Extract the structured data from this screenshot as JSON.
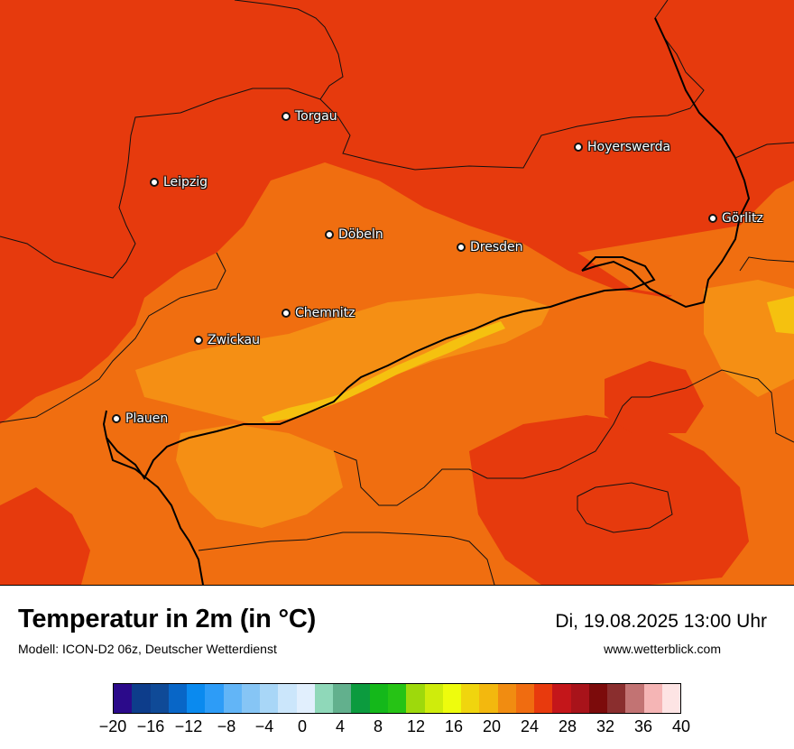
{
  "title": "Temperatur in 2m (in °C)",
  "subtitle": "Modell: ICON-D2 06z, Deutscher Wetterdienst",
  "datetime": "Di, 19.08.2025 13:00 Uhr",
  "website": "www.wetterblick.com",
  "colors": {
    "red": "#e63a0d",
    "orange": "#f06e10",
    "light_orange": "#f58f14",
    "yellow": "#f5c10f"
  },
  "cities": [
    {
      "name": "Torgau"
    },
    {
      "name": "Hoyerswerda"
    },
    {
      "name": "Leipzig"
    },
    {
      "name": "Görlitz"
    },
    {
      "name": "Döbeln"
    },
    {
      "name": "Dresden"
    },
    {
      "name": "Chemnitz"
    },
    {
      "name": "Zwickau"
    },
    {
      "name": "Plauen"
    }
  ],
  "legend": {
    "colors": [
      "#2b0a8a",
      "#0d3d8b",
      "#0f4a97",
      "#0866c7",
      "#0a8aef",
      "#2d9cf7",
      "#62b5f7",
      "#86c5f5",
      "#a8d6f7",
      "#cbe6fb",
      "#e1effd",
      "#8fd8b9",
      "#62b08d",
      "#0c9b3e",
      "#14b81a",
      "#26c315",
      "#9ed90c",
      "#cfec0c",
      "#eefc0d",
      "#f0d50e",
      "#f3b80e",
      "#f18c11",
      "#f06c10",
      "#e83a0d",
      "#c4161a",
      "#a8131a",
      "#7c0b0b",
      "#8a2e2e",
      "#c27373",
      "#f5b5b5",
      "#fde4e4"
    ],
    "ticks": [
      "−20",
      "−16",
      "−12",
      "−8",
      "−4",
      "0",
      "4",
      "8",
      "12",
      "16",
      "20",
      "24",
      "28",
      "32",
      "36",
      "40"
    ]
  }
}
